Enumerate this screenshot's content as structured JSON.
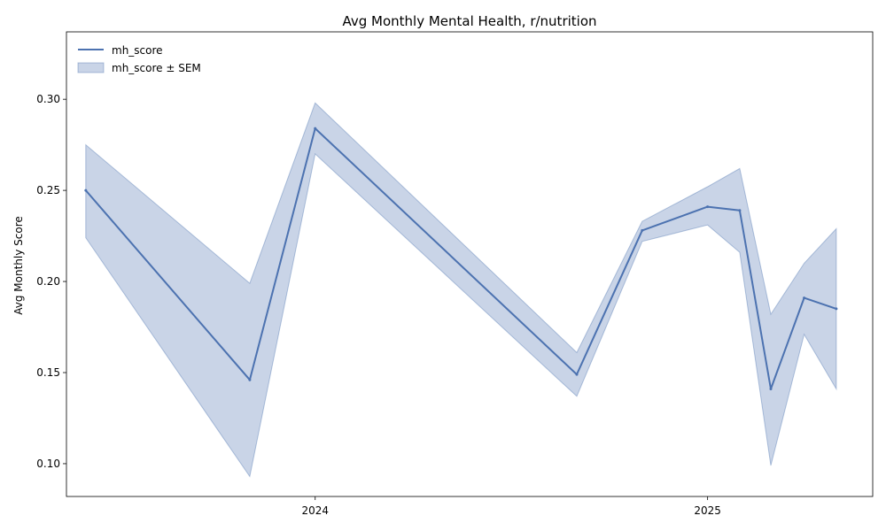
{
  "chart_data": {
    "type": "line",
    "title": "Avg Monthly Mental Health, r/nutrition",
    "xlabel": "",
    "ylabel": "Avg Monthly Score",
    "x_tick_labels": [
      {
        "date": "2024-01-01",
        "label": "2024"
      },
      {
        "date": "2025-01-01",
        "label": "2025"
      }
    ],
    "y_ticks": [
      0.1,
      0.15,
      0.2,
      0.25,
      0.3
    ],
    "y_tick_labels": [
      "0.10",
      "0.15",
      "0.20",
      "0.25",
      "0.30"
    ],
    "xlim": [
      "2023-05-14",
      "2025-06-04"
    ],
    "ylim": [
      0.082,
      0.337
    ],
    "grid": false,
    "legend_position": "top-left",
    "series": [
      {
        "name": "mh_score",
        "color": "#4c72b0",
        "x": [
          "2023-06-01",
          "2023-11-01",
          "2024-01-01",
          "2024-09-01",
          "2024-11-01",
          "2025-01-01",
          "2025-01-31",
          "2025-03-01",
          "2025-04-01",
          "2025-05-01"
        ],
        "values": [
          0.25,
          0.146,
          0.284,
          0.149,
          0.228,
          0.241,
          0.239,
          0.141,
          0.191,
          0.185
        ]
      }
    ],
    "band": {
      "name": "mh_score ± SEM",
      "color": "#4c72b0",
      "lower": [
        0.224,
        0.093,
        0.27,
        0.137,
        0.222,
        0.231,
        0.216,
        0.099,
        0.171,
        0.141
      ],
      "upper": [
        0.275,
        0.199,
        0.298,
        0.161,
        0.233,
        0.252,
        0.262,
        0.182,
        0.21,
        0.229
      ]
    }
  }
}
